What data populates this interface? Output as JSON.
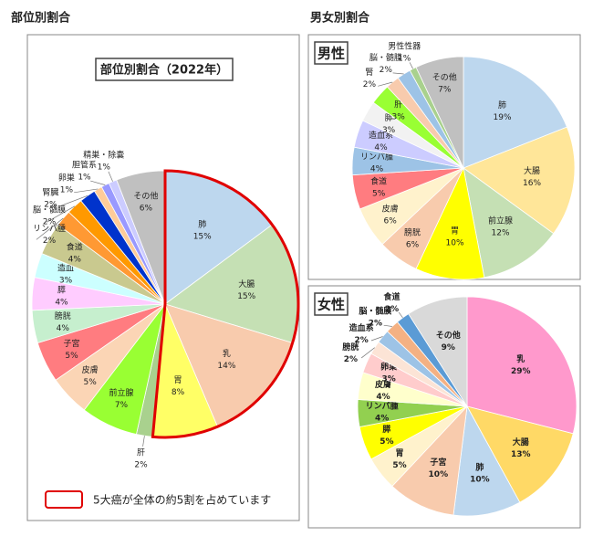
{
  "section_titles": [
    "部位別割合",
    "男女別割合"
  ],
  "chart_data": [
    {
      "type": "pie",
      "title": "部位別割合（2022年）",
      "categories": [
        "肺",
        "大腸",
        "乳",
        "胃",
        "肝",
        "前立腺",
        "皮膚",
        "子宮",
        "膀胱",
        "膵",
        "造血",
        "食道",
        "リンパ腫",
        "脳・髄膜",
        "腎臓",
        "卵巣",
        "胆管系",
        "精巣・除嚢",
        "その他"
      ],
      "values": [
        15,
        15,
        14,
        8,
        2,
        7,
        5,
        5,
        4,
        4,
        3,
        4,
        2,
        2,
        2,
        1,
        1,
        1,
        6
      ],
      "value_labels": [
        "15%",
        "15%",
        "14%",
        "8%",
        "2%",
        "7%",
        "5%",
        "5%",
        "4%",
        "4%",
        "3%",
        "4%",
        "2%",
        "2%",
        "2%",
        "1%",
        "1%",
        "1%",
        "6%"
      ],
      "colors": [
        "#bdd7ee",
        "#c5e0b4",
        "#f8cbad",
        "#ffff66",
        "#a9d18e",
        "#99ff33",
        "#fbd5b5",
        "#ff7c80",
        "#c6efce",
        "#ffccff",
        "#ccffff",
        "#c9c98f",
        "#ff9933",
        "#ff9900",
        "#0033cc",
        "#ffcc99",
        "#9999ff",
        "#ccccff",
        "#c0c0c0"
      ],
      "outline": {
        "color": "#e00000",
        "slices": 4
      },
      "legend_note": "5大癌が全体の約5割を占めています"
    },
    {
      "type": "pie",
      "title": "男性",
      "categories": [
        "肺",
        "大腸",
        "前立腺",
        "胃",
        "膀胱",
        "皮膚",
        "食道",
        "リンパ腫",
        "造血系",
        "膵",
        "肝",
        "腎",
        "脳・髄膜",
        "男性性器",
        "その他"
      ],
      "values": [
        19,
        16,
        12,
        10,
        6,
        6,
        5,
        4,
        4,
        3,
        3,
        2,
        2,
        1,
        7
      ],
      "value_labels": [
        "19%",
        "16%",
        "12%",
        "10%",
        "6%",
        "6%",
        "5%",
        "4%",
        "4%",
        "3%",
        "3%",
        "2%",
        "2%",
        "1%",
        "7%"
      ],
      "colors": [
        "#bdd7ee",
        "#ffe699",
        "#c5e0b4",
        "#ffff00",
        "#f8cbad",
        "#fff2cc",
        "#ff7c80",
        "#9dc3e6",
        "#ccccff",
        "#f2f2f2",
        "#99ff33",
        "#f8cbad",
        "#9dc3e6",
        "#a9d18e",
        "#c0c0c0"
      ]
    },
    {
      "type": "pie",
      "title": "女性",
      "bold_labels": true,
      "categories": [
        "乳",
        "大腸",
        "肺",
        "子宮",
        "胃",
        "膵",
        "リンパ腫",
        "皮膚",
        "卵巣",
        "膀胱",
        "造血系",
        "脳・髄膜",
        "食道",
        "その他"
      ],
      "values": [
        29,
        13,
        10,
        10,
        5,
        5,
        4,
        4,
        3,
        2,
        2,
        2,
        2,
        9
      ],
      "value_labels": [
        "29%",
        "13%",
        "10%",
        "10%",
        "5%",
        "5%",
        "4%",
        "4%",
        "3%",
        "2%",
        "2%",
        "2%",
        "2%",
        "9%"
      ],
      "colors": [
        "#ff99cc",
        "#ffd966",
        "#bdd7ee",
        "#f8cbad",
        "#fff2cc",
        "#ffff00",
        "#92d050",
        "#ffffcc",
        "#ffcccc",
        "#fce4d6",
        "#9dc3e6",
        "#f4b183",
        "#5b9bd5",
        "#d9d9d9"
      ]
    }
  ]
}
